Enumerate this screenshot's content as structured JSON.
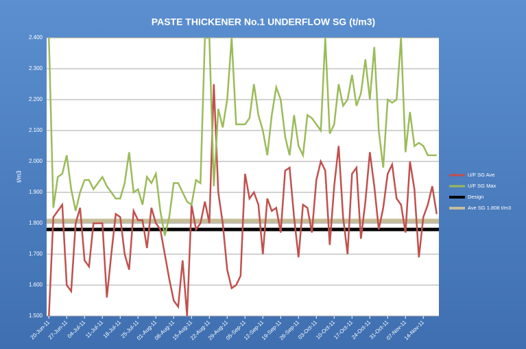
{
  "chart_data": {
    "type": "line",
    "title": "PASTE THICKENER No.1 UNDERFLOW SG (t/m3)",
    "y_label": "t/m3",
    "categories": [
      "20-Jun-11",
      null,
      null,
      null,
      "27-Jun-11",
      null,
      null,
      null,
      "04-Jul-11",
      null,
      null,
      null,
      "11-Jul-11",
      null,
      null,
      null,
      "18-Jul-11",
      null,
      null,
      null,
      "25-Jul-11",
      null,
      null,
      null,
      "01-Aug-11",
      null,
      null,
      null,
      "08-Aug-11",
      null,
      null,
      null,
      "15-Aug-11",
      null,
      null,
      null,
      "22-Aug-11",
      null,
      null,
      null,
      "29-Aug-11",
      null,
      null,
      null,
      "05-Sep-11",
      null,
      null,
      null,
      "12-Sep-11",
      null,
      null,
      null,
      "19-Sep-11",
      null,
      null,
      null,
      "26-Sep-11",
      null,
      null,
      null,
      "03-Oct-11",
      null,
      null,
      null,
      "10-Oct-11",
      null,
      null,
      null,
      "17-Oct-11",
      null,
      null,
      null,
      "24-Oct-11",
      null,
      null,
      null,
      "31-Oct-11",
      null,
      null,
      null,
      "07-Nov-11",
      null,
      null,
      null,
      "14-Nov-11",
      null,
      null,
      null
    ],
    "series": [
      {
        "name": "U/F SG Ave",
        "color": "#c0504d",
        "values": [
          1.5,
          1.82,
          1.84,
          1.86,
          1.6,
          1.58,
          1.8,
          1.85,
          1.68,
          1.66,
          1.8,
          1.8,
          1.8,
          1.56,
          1.7,
          1.83,
          1.82,
          1.7,
          1.65,
          1.84,
          1.81,
          1.81,
          1.72,
          1.85,
          1.8,
          1.78,
          1.7,
          1.62,
          1.55,
          1.53,
          1.68,
          1.5,
          1.86,
          1.78,
          1.8,
          1.87,
          1.8,
          2.25,
          1.9,
          1.8,
          1.65,
          1.59,
          1.6,
          1.63,
          1.96,
          1.88,
          1.9,
          1.86,
          1.7,
          1.88,
          1.84,
          1.85,
          1.77,
          1.97,
          1.98,
          1.82,
          1.69,
          1.86,
          1.85,
          1.77,
          1.94,
          2.0,
          1.97,
          1.73,
          1.92,
          2.05,
          1.82,
          1.7,
          1.96,
          1.98,
          1.75,
          1.87,
          2.03,
          1.92,
          1.78,
          1.85,
          1.96,
          1.99,
          1.88,
          1.86,
          1.77,
          2.0,
          1.91,
          1.69,
          1.82,
          1.86,
          1.92,
          1.83
        ]
      },
      {
        "name": "U/F SG Max",
        "color": "#9bbb59",
        "values": [
          2.4,
          1.85,
          1.95,
          1.96,
          2.02,
          1.91,
          1.84,
          1.9,
          1.94,
          1.94,
          1.91,
          1.93,
          1.95,
          1.92,
          1.9,
          1.88,
          1.88,
          1.93,
          2.03,
          1.9,
          1.91,
          1.86,
          1.95,
          1.93,
          1.96,
          1.84,
          1.76,
          1.82,
          1.93,
          1.93,
          1.9,
          1.87,
          1.86,
          1.94,
          1.93,
          2.4,
          2.4,
          1.92,
          2.17,
          2.11,
          2.2,
          2.4,
          2.12,
          2.12,
          2.12,
          2.14,
          2.25,
          2.15,
          2.1,
          2.02,
          2.15,
          2.24,
          2.2,
          2.08,
          2.02,
          2.15,
          2.05,
          2.02,
          2.15,
          2.14,
          2.12,
          2.1,
          2.4,
          2.09,
          2.12,
          2.25,
          2.18,
          2.2,
          2.28,
          2.18,
          2.22,
          2.33,
          2.2,
          2.37,
          2.1,
          1.98,
          2.2,
          2.19,
          2.2,
          2.4,
          2.03,
          2.16,
          2.05,
          2.06,
          2.05,
          2.02,
          2.02,
          2.02
        ]
      }
    ],
    "reference_lines": [
      {
        "name": "Design",
        "color": "#000000",
        "value": 1.78
      },
      {
        "name": "Ave SG 1.808 t/m3",
        "color": "#c4bd97",
        "value": 1.808
      }
    ],
    "ylim": [
      1.5,
      2.4
    ],
    "yticks": [
      {
        "value": 1.5,
        "label": "1.500"
      },
      {
        "value": 1.6,
        "label": "1.600"
      },
      {
        "value": 1.7,
        "label": "1.700"
      },
      {
        "value": 1.8,
        "label": "1.800"
      },
      {
        "value": 1.9,
        "label": "1.900"
      },
      {
        "value": 2.0,
        "label": "2.000"
      },
      {
        "value": 2.1,
        "label": "2.100"
      },
      {
        "value": 2.2,
        "label": "2.200"
      },
      {
        "value": 2.3,
        "label": "2.300"
      },
      {
        "value": 2.4,
        "label": "2.400"
      }
    ],
    "grid": true,
    "legend": "right"
  }
}
